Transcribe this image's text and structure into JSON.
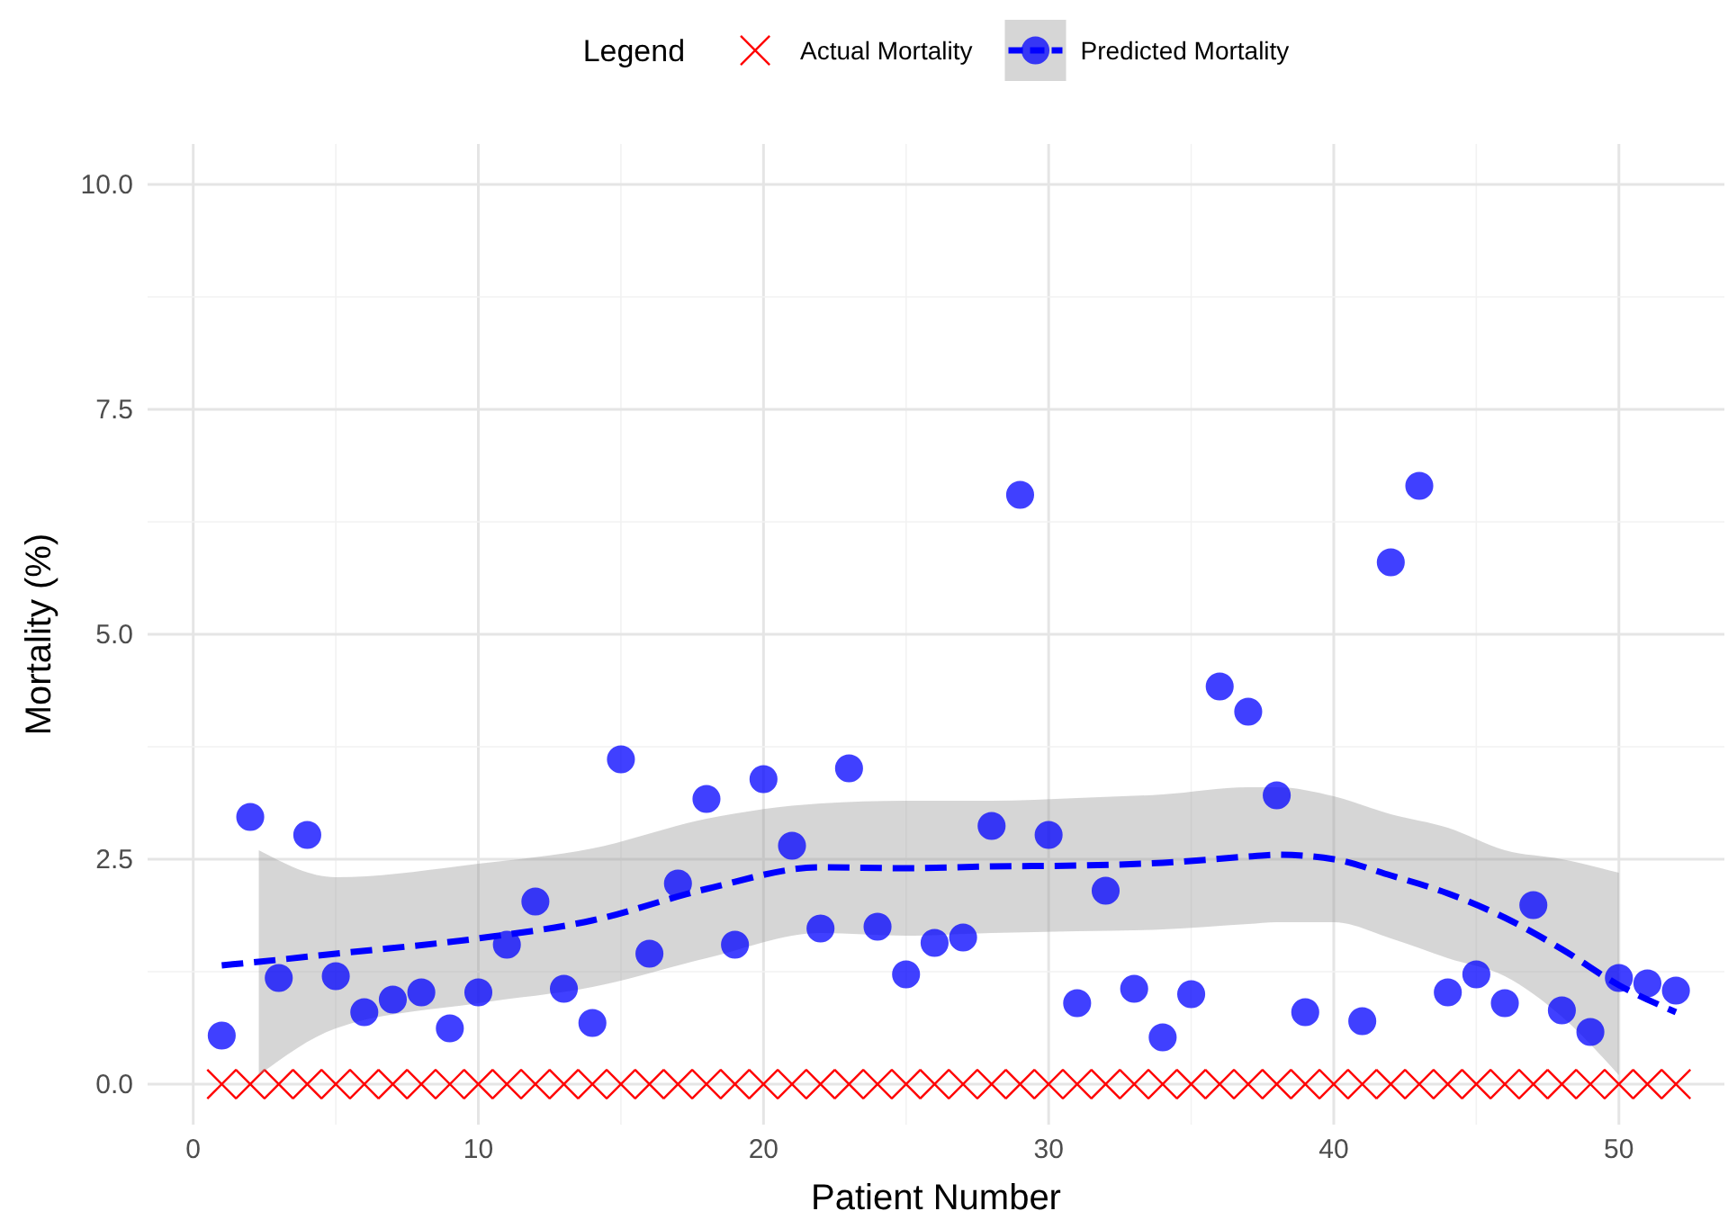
{
  "chart_data": {
    "type": "scatter",
    "xlabel": "Patient Number",
    "ylabel": "Mortality (%)",
    "legend_title": "Legend",
    "legend": "top",
    "grid": true,
    "xlim": [
      -1.6,
      53.7
    ],
    "ylim": [
      -0.45,
      10.45
    ],
    "xticks": [
      0,
      10,
      20,
      30,
      40,
      50
    ],
    "yticks": [
      {
        "value": 0,
        "label": "0.0"
      },
      {
        "value": 2.5,
        "label": "2.5"
      },
      {
        "value": 5,
        "label": "5.0"
      },
      {
        "value": 7.5,
        "label": "7.5"
      },
      {
        "value": 10,
        "label": "10.0"
      }
    ],
    "series": [
      {
        "name": "Actual Mortality",
        "marker": "cross",
        "color": "#ff0000",
        "x": [
          1,
          2,
          3,
          4,
          5,
          6,
          7,
          8,
          9,
          10,
          11,
          12,
          13,
          14,
          15,
          16,
          17,
          18,
          19,
          20,
          21,
          22,
          23,
          24,
          25,
          26,
          27,
          28,
          29,
          30,
          31,
          32,
          33,
          34,
          35,
          36,
          37,
          38,
          39,
          40,
          41,
          42,
          43,
          44,
          45,
          46,
          47,
          48,
          49,
          50,
          51,
          52
        ],
        "values": [
          0,
          0,
          0,
          0,
          0,
          0,
          0,
          0,
          0,
          0,
          0,
          0,
          0,
          0,
          0,
          0,
          0,
          0,
          0,
          0,
          0,
          0,
          0,
          0,
          0,
          0,
          0,
          0,
          0,
          0,
          0,
          0,
          0,
          0,
          0,
          0,
          0,
          0,
          0,
          0,
          0,
          0,
          0,
          0,
          0,
          0,
          0,
          0,
          0,
          0,
          0,
          0
        ]
      },
      {
        "type": "line",
        "line_style": "dashed",
        "color": "#0000ff",
        "x": [
          1,
          2.3,
          5,
          10,
          14,
          18,
          22,
          25,
          28,
          31,
          34,
          37,
          38,
          40,
          42,
          44,
          46,
          48,
          50,
          52
        ],
        "values": [
          1.32,
          1.36,
          1.45,
          1.62,
          1.82,
          2.17,
          2.41,
          2.4,
          2.42,
          2.43,
          2.46,
          2.53,
          2.55,
          2.5,
          2.32,
          2.12,
          1.85,
          1.5,
          1.1,
          0.8
        ],
        "upper": [
          null,
          2.6,
          2.3,
          2.45,
          2.62,
          2.95,
          3.12,
          3.15,
          3.15,
          3.18,
          3.22,
          3.3,
          3.3,
          3.2,
          3.0,
          2.85,
          2.6,
          2.5,
          2.35,
          null
        ],
        "lower": [
          null,
          0.1,
          0.62,
          0.9,
          1.08,
          1.4,
          1.68,
          1.65,
          1.68,
          1.7,
          1.72,
          1.78,
          1.8,
          1.8,
          1.62,
          1.4,
          1.2,
          0.75,
          0.1,
          null
        ]
      },
      {
        "name": "Predicted Mortality",
        "marker": "circle",
        "color": "#0000ff",
        "x": [
          1,
          2,
          3,
          4,
          5,
          6,
          7,
          8,
          9,
          10,
          11,
          12,
          13,
          14,
          15,
          16,
          17,
          18,
          19,
          20,
          21,
          22,
          23,
          24,
          25,
          26,
          27,
          28,
          29,
          30,
          31,
          32,
          33,
          34,
          35,
          36,
          37,
          38,
          39,
          41,
          42,
          43,
          44,
          45,
          46,
          47,
          48,
          49,
          50,
          51,
          52
        ],
        "values": [
          0.54,
          2.97,
          1.18,
          2.77,
          1.2,
          0.8,
          0.94,
          1.02,
          0.62,
          1.02,
          1.55,
          2.03,
          1.06,
          0.68,
          3.61,
          1.45,
          2.23,
          3.17,
          1.55,
          3.39,
          2.65,
          1.73,
          3.51,
          1.75,
          1.22,
          1.57,
          1.63,
          2.87,
          6.55,
          2.77,
          0.9,
          2.15,
          1.06,
          0.52,
          1.0,
          4.42,
          4.14,
          3.21,
          0.8,
          0.7,
          5.8,
          6.65,
          1.02,
          1.22,
          0.9,
          1.99,
          0.82,
          0.58,
          1.18,
          1.12,
          1.04
        ]
      }
    ]
  }
}
